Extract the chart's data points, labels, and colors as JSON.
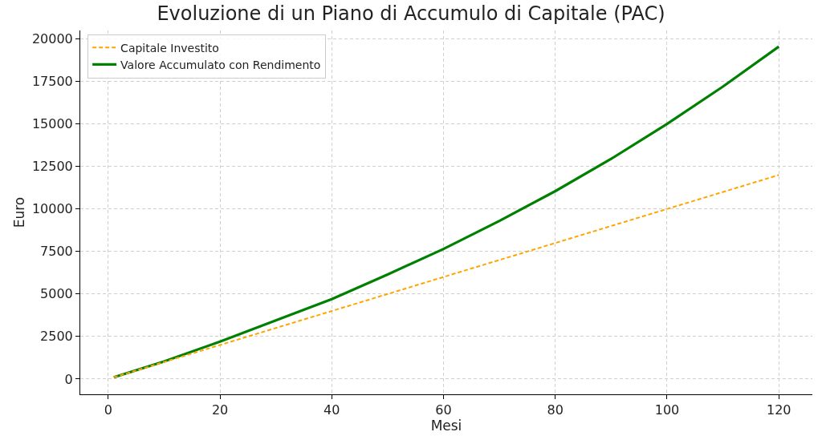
{
  "chart_data": {
    "type": "line",
    "title": "Evoluzione di un Piano di Accumulo di Capitale (PAC)",
    "xlabel": "Mesi",
    "ylabel": "Euro",
    "xlim": [
      -5,
      126
    ],
    "xticks": [
      0,
      20,
      40,
      60,
      80,
      100,
      120
    ],
    "ylim": [
      -900,
      20500
    ],
    "yticks": [
      0,
      2500,
      5000,
      7500,
      10000,
      12500,
      15000,
      17500,
      20000
    ],
    "grid": true,
    "legend": "top left",
    "marker": "none",
    "series": [
      {
        "name": "Capitale Investito",
        "color": "#ffa500",
        "line_style": "dashed",
        "x": [
          1,
          120
        ],
        "values": [
          100,
          12000
        ]
      },
      {
        "name": "Valore Accumulato con Rendimento",
        "color": "#008000",
        "line_style": "solid",
        "x": [
          1,
          10,
          20,
          30,
          40,
          50,
          60,
          70,
          80,
          90,
          100,
          110,
          120
        ],
        "values": [
          100,
          1030,
          2200,
          3450,
          4700,
          6150,
          7650,
          9300,
          11050,
          12950,
          15000,
          17200,
          19550
        ]
      }
    ]
  }
}
